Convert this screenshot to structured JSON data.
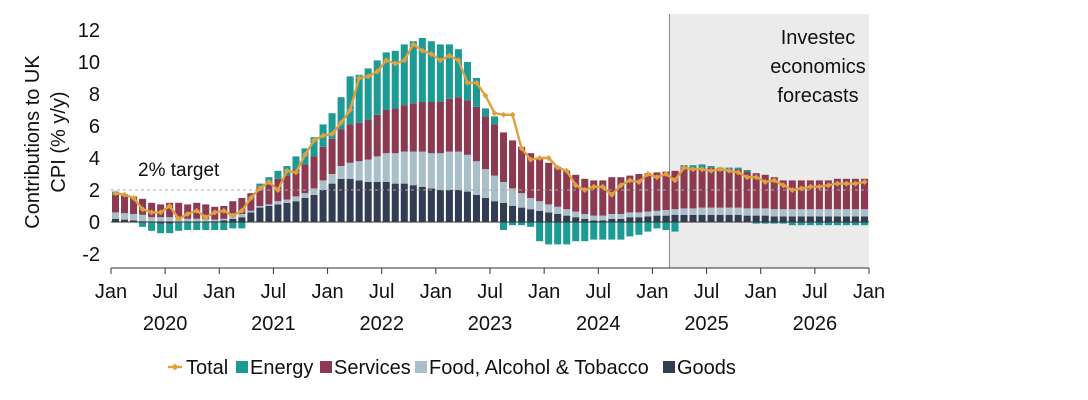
{
  "chart_data": {
    "type": "bar",
    "stacked": true,
    "title": "",
    "ylabel": "Contributions to UK CPI (% y/y)",
    "ylabel_lines": [
      "Contributions to UK",
      "CPI (% y/y)"
    ],
    "ylim": [
      -2,
      12
    ],
    "yticks": [
      -2,
      0,
      2,
      4,
      6,
      8,
      10,
      12
    ],
    "yticklabels": [
      "-2",
      "0",
      "2",
      "4",
      "6",
      "8",
      "10",
      "12"
    ],
    "x_start": "Jan 2020",
    "x_end": "Jan 2027",
    "xtick_labels": [
      "Jan",
      "Jul",
      "Jan",
      "Jul",
      "Jan",
      "Jul",
      "Jan",
      "Jul",
      "Jan",
      "Jul",
      "Jan",
      "Jul",
      "Jan",
      "Jul",
      "Jan"
    ],
    "year_labels": [
      "2020",
      "2021",
      "2022",
      "2023",
      "2024",
      "2025",
      "2026"
    ],
    "target": {
      "value": 2,
      "label": "2% target"
    },
    "forecast": {
      "start_index": 62,
      "label_lines": [
        "Investec",
        "economics",
        "forecasts"
      ]
    },
    "legend_position": "bottom",
    "colors": {
      "total": "#E0A040",
      "energy": "#1C9A94",
      "services": "#8C3A52",
      "food": "#A9BFCA",
      "goods": "#323C52",
      "target_line": "#A8A8A8",
      "forecast_bg": "#EBEBEB",
      "axis": "#333333"
    },
    "series": [
      {
        "name": "Goods",
        "key": "goods",
        "values": [
          0.2,
          0.15,
          0.1,
          0.05,
          -0.05,
          -0.1,
          -0.1,
          -0.05,
          0.0,
          0.0,
          0.0,
          0.05,
          0.1,
          0.2,
          0.3,
          0.6,
          0.9,
          1.0,
          1.1,
          1.2,
          1.3,
          1.5,
          1.7,
          2.0,
          2.4,
          2.7,
          2.7,
          2.6,
          2.5,
          2.5,
          2.5,
          2.4,
          2.4,
          2.3,
          2.2,
          2.1,
          2.0,
          2.0,
          2.0,
          1.9,
          1.7,
          1.5,
          1.3,
          1.2,
          1.0,
          0.9,
          0.8,
          0.7,
          0.6,
          0.5,
          0.4,
          0.3,
          0.2,
          0.1,
          0.1,
          0.2,
          0.2,
          0.3,
          0.3,
          0.35,
          0.4,
          0.4,
          0.45,
          0.45,
          0.45,
          0.45,
          0.45,
          0.45,
          0.45,
          0.45,
          0.4,
          0.4,
          0.4,
          0.35,
          0.35,
          0.35,
          0.35,
          0.35,
          0.35,
          0.35,
          0.35,
          0.35,
          0.35,
          0.35
        ]
      },
      {
        "name": "Food, Alcohol & Tobacco",
        "key": "food",
        "values": [
          0.4,
          0.4,
          0.4,
          0.4,
          0.3,
          0.3,
          0.3,
          0.3,
          0.2,
          0.2,
          0.2,
          0.1,
          0.1,
          0.2,
          0.2,
          0.1,
          0.1,
          0.1,
          0.2,
          0.2,
          0.3,
          0.3,
          0.4,
          0.6,
          0.6,
          0.8,
          1.0,
          1.2,
          1.4,
          1.6,
          1.8,
          1.9,
          2.0,
          2.1,
          2.2,
          2.2,
          2.3,
          2.4,
          2.4,
          2.3,
          2.1,
          1.8,
          1.6,
          1.3,
          1.1,
          0.9,
          0.7,
          0.6,
          0.5,
          0.45,
          0.4,
          0.35,
          0.3,
          0.3,
          0.3,
          0.3,
          0.3,
          0.3,
          0.3,
          0.3,
          0.3,
          0.35,
          0.35,
          0.4,
          0.4,
          0.45,
          0.45,
          0.45,
          0.45,
          0.45,
          0.45,
          0.45,
          0.45,
          0.45,
          0.45,
          0.45,
          0.45,
          0.45,
          0.45,
          0.45,
          0.45,
          0.45,
          0.45,
          0.45
        ]
      },
      {
        "name": "Services",
        "key": "services",
        "values": [
          1.1,
          1.1,
          1.1,
          1.0,
          0.9,
          0.8,
          0.9,
          0.9,
          0.9,
          1.0,
          0.9,
          0.8,
          0.8,
          0.9,
          1.0,
          1.1,
          1.2,
          1.3,
          1.4,
          1.5,
          1.7,
          1.8,
          2.0,
          2.1,
          2.2,
          2.3,
          2.4,
          2.4,
          2.5,
          2.6,
          2.7,
          2.8,
          2.9,
          3.0,
          3.1,
          3.2,
          3.2,
          3.3,
          3.4,
          3.4,
          3.4,
          3.3,
          3.2,
          3.1,
          3.0,
          2.9,
          2.8,
          2.7,
          2.6,
          2.5,
          2.4,
          2.3,
          2.2,
          2.2,
          2.2,
          2.3,
          2.3,
          2.3,
          2.4,
          2.4,
          2.4,
          2.4,
          2.4,
          2.5,
          2.5,
          2.5,
          2.5,
          2.4,
          2.4,
          2.4,
          2.3,
          2.2,
          2.1,
          2.0,
          1.8,
          1.8,
          1.8,
          1.8,
          1.8,
          1.8,
          1.9,
          1.9,
          1.9,
          1.9
        ]
      },
      {
        "name": "Energy",
        "key": "energy",
        "values": [
          0.2,
          0.1,
          0.0,
          -0.3,
          -0.5,
          -0.6,
          -0.6,
          -0.5,
          -0.5,
          -0.5,
          -0.5,
          -0.5,
          -0.5,
          -0.4,
          -0.4,
          0.0,
          0.2,
          0.4,
          0.5,
          0.6,
          0.8,
          1.0,
          1.2,
          1.4,
          1.6,
          2.0,
          3.0,
          3.0,
          3.2,
          3.4,
          3.6,
          3.6,
          3.8,
          3.9,
          4.0,
          3.8,
          3.6,
          3.4,
          3.0,
          2.4,
          1.8,
          0.5,
          0.5,
          -0.5,
          -0.2,
          -0.2,
          -0.3,
          -1.2,
          -1.4,
          -1.4,
          -1.4,
          -1.2,
          -1.2,
          -1.1,
          -1.1,
          -1.1,
          -1.1,
          -0.9,
          -0.8,
          -0.6,
          -0.4,
          -0.5,
          -0.6,
          0.2,
          0.2,
          0.2,
          0.1,
          0.1,
          0.1,
          0.1,
          0.1,
          -0.1,
          -0.1,
          -0.1,
          -0.1,
          -0.2,
          -0.2,
          -0.2,
          -0.2,
          -0.2,
          -0.2,
          -0.2,
          -0.2,
          -0.2
        ]
      },
      {
        "name": "Total",
        "key": "total",
        "type": "line",
        "values": [
          1.8,
          1.7,
          1.5,
          0.8,
          0.6,
          0.6,
          1.0,
          0.2,
          0.5,
          0.7,
          0.3,
          0.6,
          0.7,
          0.4,
          0.7,
          1.5,
          2.1,
          2.5,
          2.0,
          3.2,
          3.1,
          4.2,
          5.1,
          5.4,
          5.5,
          6.2,
          7.0,
          9.0,
          9.1,
          9.4,
          10.1,
          9.9,
          10.1,
          11.1,
          10.7,
          10.5,
          10.1,
          10.4,
          10.1,
          8.7,
          8.7,
          7.9,
          6.8,
          6.7,
          6.7,
          4.6,
          3.9,
          4.0,
          4.0,
          3.4,
          3.2,
          2.3,
          2.0,
          2.2,
          2.2,
          1.7,
          2.3,
          2.6,
          2.5,
          3.0,
          2.8,
          3.0,
          2.6,
          3.4,
          3.3,
          3.3,
          3.2,
          3.3,
          3.2,
          3.1,
          2.8,
          2.8,
          2.5,
          2.6,
          2.3,
          2.0,
          2.1,
          2.2,
          2.2,
          2.3,
          2.4,
          2.4,
          2.4,
          2.5
        ]
      }
    ],
    "legend": [
      {
        "label": "Total",
        "key": "total",
        "kind": "line"
      },
      {
        "label": "Energy",
        "key": "energy",
        "kind": "box"
      },
      {
        "label": "Services",
        "key": "services",
        "kind": "box"
      },
      {
        "label": "Food, Alcohol & Tobacco",
        "key": "food",
        "kind": "box"
      },
      {
        "label": "Goods",
        "key": "goods",
        "kind": "box"
      }
    ]
  }
}
